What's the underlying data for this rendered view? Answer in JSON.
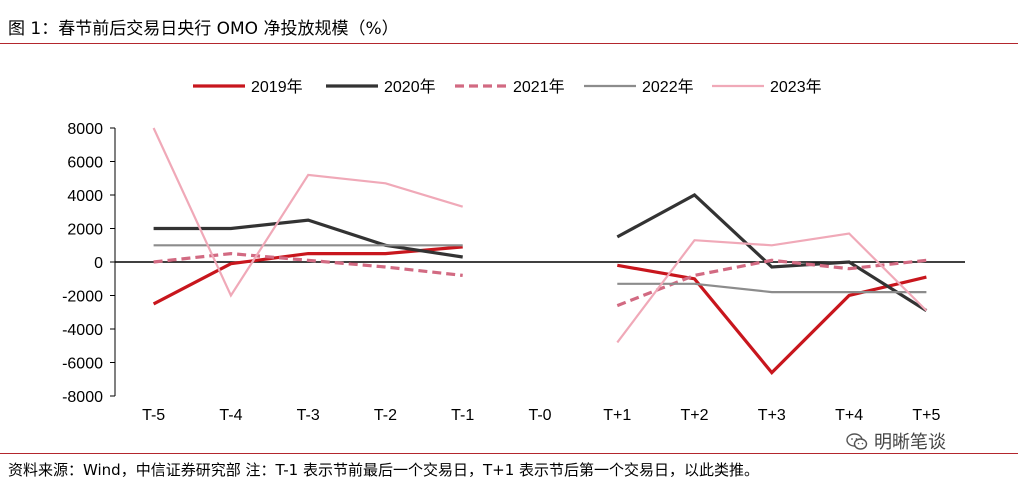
{
  "header": {
    "title": "图 1：春节前后交易日央行 OMO 净投放规模（%）"
  },
  "footer": {
    "source": "资料来源：Wind，中信证券研究部 注：T-1 表示节前最后一个交易日，T+1 表示节后第一个交易日，以此类推。"
  },
  "watermark": {
    "text": "明晰笔谈",
    "icon": "wechat-icon"
  },
  "chart_data": {
    "type": "line",
    "title": "图 1：春节前后交易日央行 OMO 净投放规模（%）",
    "categories": [
      "T-5",
      "T-4",
      "T-3",
      "T-2",
      "T-1",
      "T-0",
      "T+1",
      "T+2",
      "T+3",
      "T+4",
      "T+5"
    ],
    "ylim": [
      -8000,
      8000
    ],
    "yticks": [
      "8000",
      "6000",
      "4000",
      "2000",
      "0",
      "-2000",
      "-4000",
      "-6000",
      "-8000"
    ],
    "legend_position": "top",
    "grid": false,
    "series": [
      {
        "name": "2019年",
        "color": "#c8161d",
        "style": "solid-thick",
        "values": [
          -2500,
          -100,
          500,
          500,
          900,
          null,
          -200,
          -1000,
          -6600,
          -2000,
          -900
        ]
      },
      {
        "name": "2020年",
        "color": "#333333",
        "style": "solid-thick",
        "values": [
          2000,
          2000,
          2500,
          1000,
          300,
          null,
          1500,
          4000,
          -300,
          0,
          -2900
        ]
      },
      {
        "name": "2021年",
        "color": "#d26a82",
        "style": "dashed",
        "values": [
          0,
          500,
          100,
          -300,
          -800,
          null,
          -2600,
          -800,
          100,
          -400,
          100
        ]
      },
      {
        "name": "2022年",
        "color": "#8c8c8c",
        "style": "solid",
        "values": [
          1000,
          1000,
          1000,
          1000,
          1000,
          null,
          -1300,
          -1300,
          -1800,
          -1800,
          -1800
        ]
      },
      {
        "name": "2023年",
        "color": "#f0a9b8",
        "style": "solid",
        "values": [
          8000,
          -2000,
          5200,
          4700,
          3300,
          null,
          -4800,
          1300,
          1000,
          1700,
          -2900
        ]
      }
    ]
  }
}
